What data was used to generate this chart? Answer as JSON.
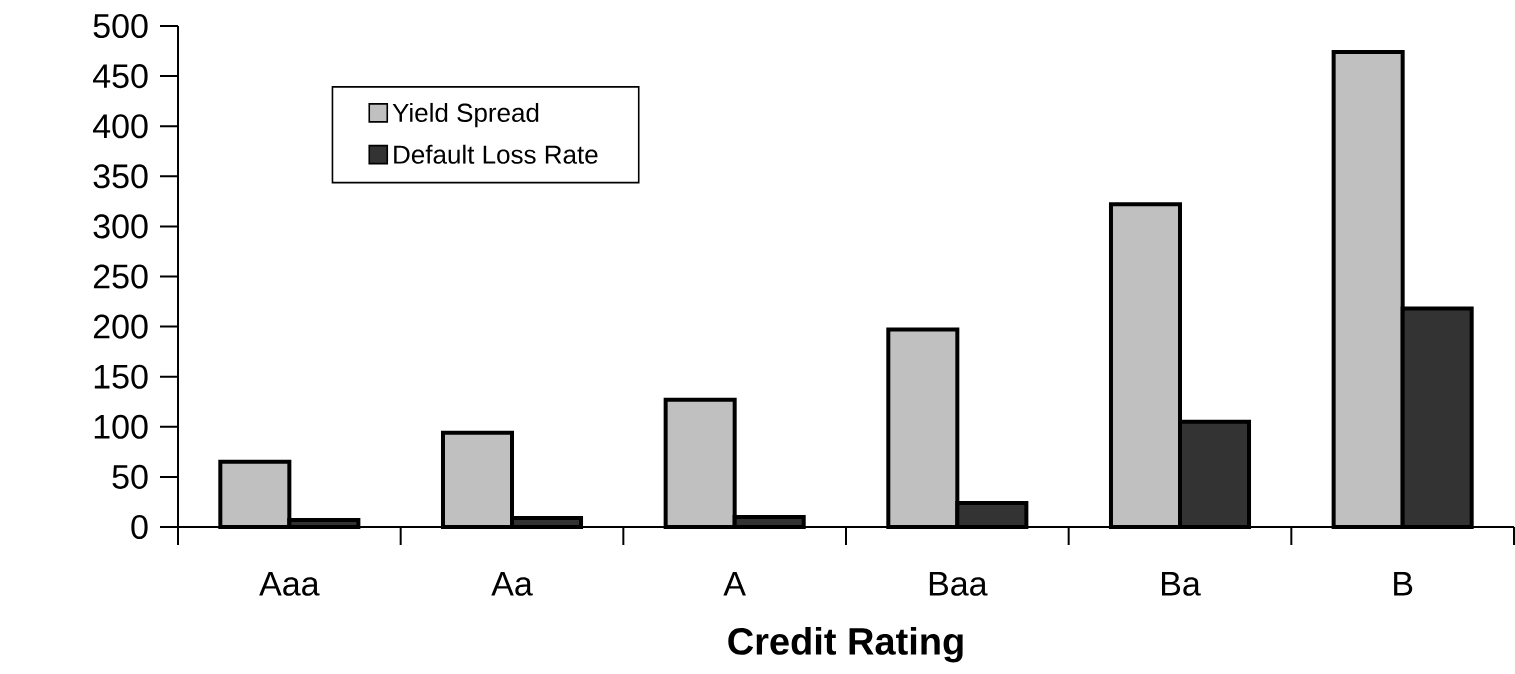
{
  "chart_data": {
    "type": "bar",
    "xlabel": "Credit Rating",
    "categories": [
      "Aaa",
      "Aa",
      "A",
      "Baa",
      "Ba",
      "B"
    ],
    "series": [
      {
        "name": "Yield Spread",
        "color": "#c0c0c0",
        "values": [
          65,
          94,
          127,
          197,
          322,
          474
        ]
      },
      {
        "name": "Default Loss Rate",
        "color": "#333333",
        "values": [
          7,
          9,
          10,
          24,
          105,
          218
        ]
      }
    ],
    "ylim": [
      0,
      500
    ],
    "yticks": [
      0,
      50,
      100,
      150,
      200,
      250,
      300,
      350,
      400,
      450,
      500
    ],
    "legend": "top left"
  }
}
